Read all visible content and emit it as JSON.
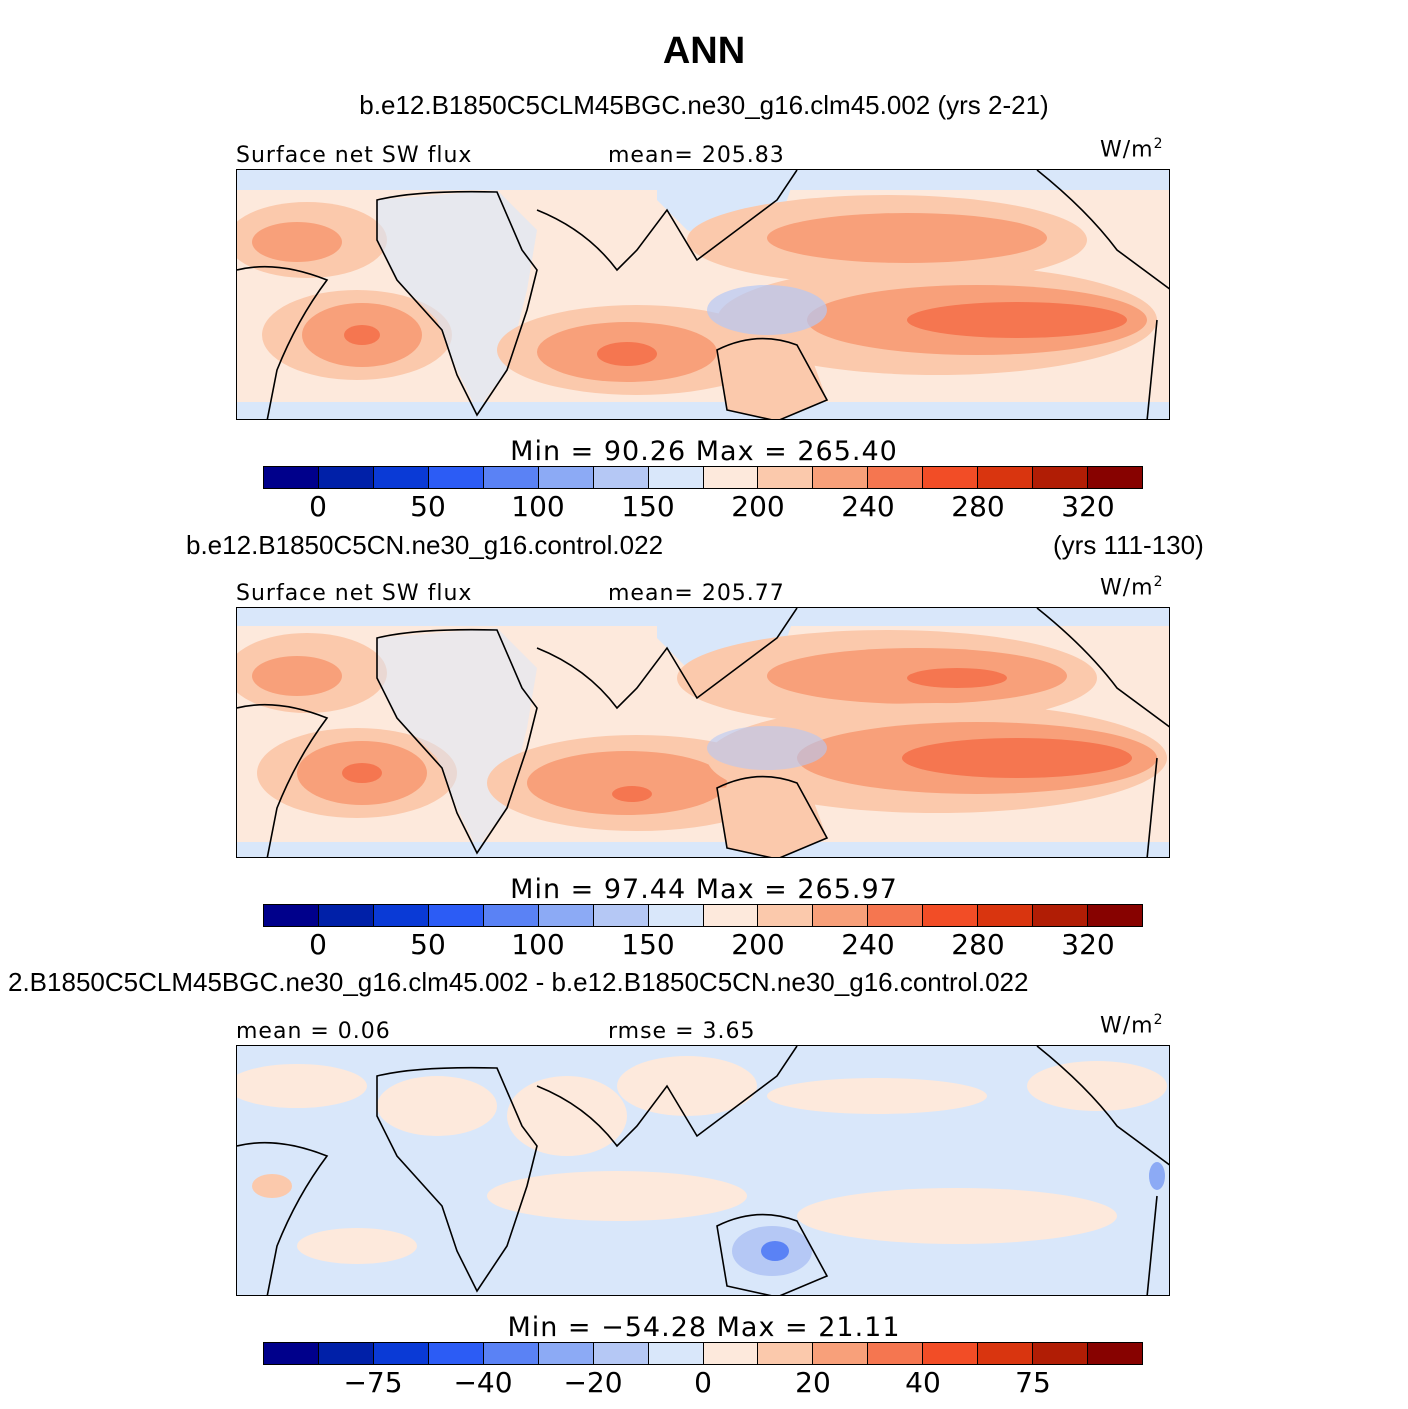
{
  "title": "ANN",
  "panels": [
    {
      "case_title": "b.e12.B1850C5CLM45BGC.ne30_g16.clm45.002 (yrs 2-21)",
      "case_years": "",
      "left_label": "Surface net SW flux",
      "center_label": "mean= 205.83",
      "units": "W/m",
      "units_sup": "2",
      "min_max": "Min =   90.26  Max  =  265.40",
      "colorbar": {
        "colors": [
          "#00008b",
          "#0020a8",
          "#0a3ad6",
          "#2c5cf5",
          "#5a82f5",
          "#8caaf5",
          "#b5c8f5",
          "#d9e7fa",
          "#fde9dc",
          "#fbc9ac",
          "#f8a07a",
          "#f57650",
          "#f24d26",
          "#d9350f",
          "#b11d05",
          "#870200"
        ],
        "ticks": [
          "0",
          "50",
          "100",
          "150",
          "200",
          "240",
          "280",
          "320"
        ]
      }
    },
    {
      "case_title": "b.e12.B1850C5CN.ne30_g16.control.022",
      "case_years": "(yrs 111-130)",
      "left_label": "Surface net SW flux",
      "center_label": "mean= 205.77",
      "units": "W/m",
      "units_sup": "2",
      "min_max": "Min =   97.44  Max  =  265.97",
      "colorbar": {
        "colors": [
          "#00008b",
          "#0020a8",
          "#0a3ad6",
          "#2c5cf5",
          "#5a82f5",
          "#8caaf5",
          "#b5c8f5",
          "#d9e7fa",
          "#fde9dc",
          "#fbc9ac",
          "#f8a07a",
          "#f57650",
          "#f24d26",
          "#d9350f",
          "#b11d05",
          "#870200"
        ],
        "ticks": [
          "0",
          "50",
          "100",
          "150",
          "200",
          "240",
          "280",
          "320"
        ]
      }
    },
    {
      "case_title": "2.B1850C5CLM45BGC.ne30_g16.clm45.002 - b.e12.B1850C5CN.ne30_g16.control.022",
      "case_years": "",
      "left_label": "mean =   0.06",
      "center_label": "rmse =   3.65",
      "units": "W/m",
      "units_sup": "2",
      "min_max": "Min = −54.28  Max  =  21.11",
      "colorbar": {
        "colors": [
          "#00008b",
          "#0020a8",
          "#0a3ad6",
          "#2c5cf5",
          "#5a82f5",
          "#8caaf5",
          "#b5c8f5",
          "#d9e7fa",
          "#fde9dc",
          "#fbc9ac",
          "#f8a07a",
          "#f57650",
          "#f24d26",
          "#d9350f",
          "#b11d05",
          "#870200"
        ],
        "ticks": [
          "−75",
          "−40",
          "−20",
          "0",
          "20",
          "40",
          "75"
        ]
      }
    }
  ],
  "chart_data": [
    {
      "type": "heatmap",
      "title": "ANN",
      "subtitle": "b.e12.B1850C5CLM45BGC.ne30_g16.clm45.002 (yrs 2-21)",
      "variable": "Surface net SW flux",
      "units": "W/m2",
      "mean": 205.83,
      "min": 90.26,
      "max": 265.4,
      "contour_levels": [
        0,
        25,
        50,
        75,
        100,
        125,
        150,
        175,
        200,
        220,
        240,
        260,
        280,
        300,
        320
      ],
      "colorbar_tick_labels": [
        0,
        50,
        100,
        150,
        200,
        240,
        280,
        320
      ]
    },
    {
      "type": "heatmap",
      "title": "ANN",
      "subtitle": "b.e12.B1850C5CN.ne30_g16.control.022 (yrs 111-130)",
      "variable": "Surface net SW flux",
      "units": "W/m2",
      "mean": 205.77,
      "min": 97.44,
      "max": 265.97,
      "contour_levels": [
        0,
        25,
        50,
        75,
        100,
        125,
        150,
        175,
        200,
        220,
        240,
        260,
        280,
        300,
        320
      ],
      "colorbar_tick_labels": [
        0,
        50,
        100,
        150,
        200,
        240,
        280,
        320
      ]
    },
    {
      "type": "heatmap",
      "title": "ANN",
      "subtitle": "2.B1850C5CLM45BGC.ne30_g16.clm45.002 - b.e12.B1850C5CN.ne30_g16.control.022",
      "variable": "difference",
      "units": "W/m2",
      "mean": 0.06,
      "rmse": 3.65,
      "min": -54.28,
      "max": 21.11,
      "contour_levels": [
        -100,
        -75,
        -50,
        -40,
        -30,
        -20,
        -10,
        0,
        10,
        20,
        30,
        40,
        50,
        75,
        100
      ],
      "colorbar_tick_labels": [
        -75,
        -40,
        -20,
        0,
        20,
        40,
        75
      ]
    }
  ]
}
